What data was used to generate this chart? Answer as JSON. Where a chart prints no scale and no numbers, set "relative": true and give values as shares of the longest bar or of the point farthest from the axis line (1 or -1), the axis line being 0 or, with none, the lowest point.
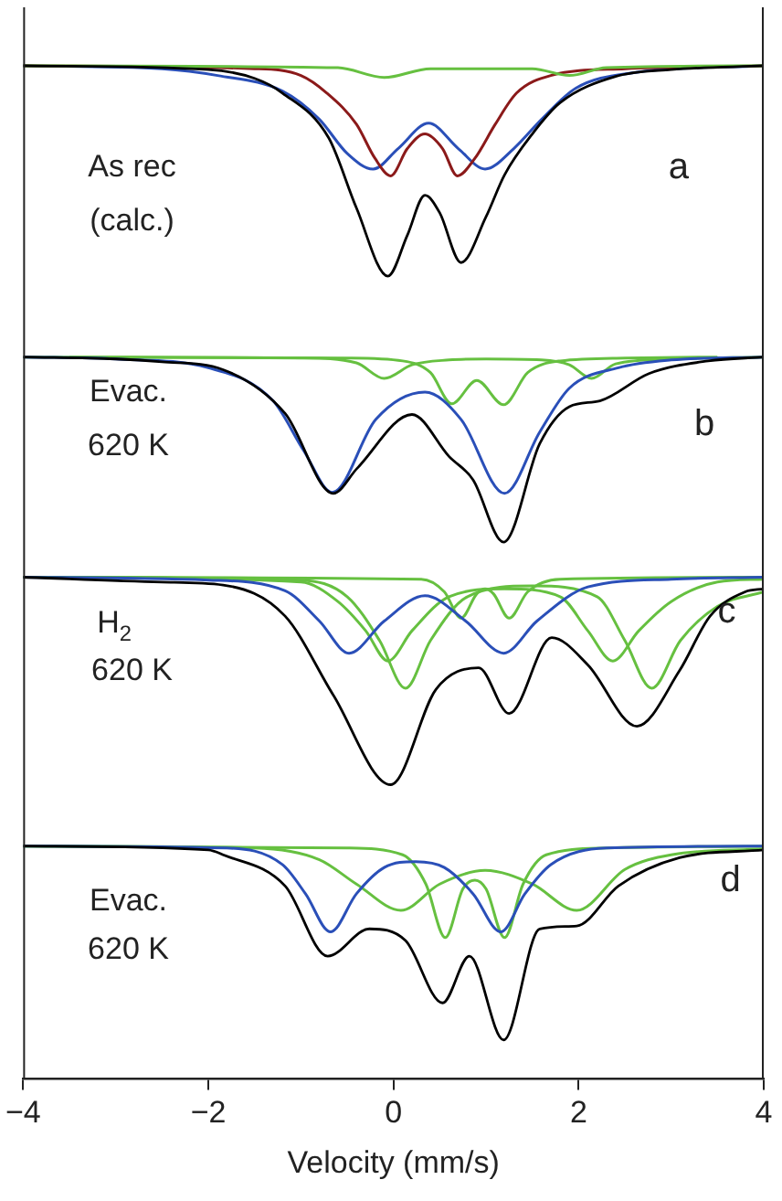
{
  "chart_data": {
    "type": "line",
    "relative": true,
    "xlabel": "Velocity (mm/s)",
    "xlim": [
      -4,
      4
    ],
    "xticks": [
      -4,
      -2,
      0,
      2,
      4
    ],
    "grid": false,
    "legend": false,
    "marker": "none",
    "line_style": "solid",
    "series": [
      {
        "color": "#000000",
        "x": [
          -4,
          -2,
          -1.5,
          -1.2,
          -0.7,
          -0.4,
          -0.06,
          0.15,
          0.34,
          0.5,
          0.73,
          1.0,
          1.2,
          1.5,
          1.8,
          2.4,
          3,
          4
        ],
        "values": [
          1.0,
          0.996,
          0.987,
          0.972,
          0.926,
          0.854,
          0.784,
          0.826,
          0.867,
          0.849,
          0.798,
          0.845,
          0.888,
          0.93,
          0.962,
          0.989,
          0.996,
          1.0
        ]
      },
      {
        "color": "#66c040",
        "x": [
          -4,
          -0.6,
          -0.1,
          0.4,
          1.5,
          1.9,
          2.3,
          4
        ],
        "values": [
          1.0,
          0.998,
          0.988,
          0.997,
          0.997,
          0.99,
          0.998,
          1.0
        ]
      },
      {
        "color": "#8b1a1a",
        "x": [
          -4,
          -1.5,
          -1.0,
          -0.72,
          -0.4,
          -0.2,
          -0.03,
          0.15,
          0.34,
          0.53,
          0.69,
          0.88,
          1.1,
          1.33,
          1.7,
          2.5,
          4
        ],
        "values": [
          1.0,
          0.997,
          0.99,
          0.972,
          0.94,
          0.905,
          0.887,
          0.915,
          0.93,
          0.915,
          0.887,
          0.905,
          0.94,
          0.972,
          0.99,
          0.997,
          1.0
        ]
      },
      {
        "color": "#2a4fb8",
        "x": [
          -4,
          -2.5,
          -1.9,
          -1.2,
          -0.8,
          -0.5,
          -0.22,
          0.05,
          0.38,
          0.7,
          0.99,
          1.3,
          1.6,
          1.97,
          2.6,
          4
        ],
        "values": [
          1.0,
          0.997,
          0.99,
          0.974,
          0.945,
          0.91,
          0.894,
          0.915,
          0.941,
          0.915,
          0.894,
          0.915,
          0.945,
          0.977,
          0.993,
          1.0
        ]
      },
      {
        "color": "#000000",
        "x": [
          -4,
          -3,
          -2.5,
          -1.84,
          -1.17,
          -0.65,
          -0.39,
          0.2,
          0.6,
          0.86,
          1.19,
          1.58,
          1.9,
          2.23,
          2.76,
          3.4,
          4
        ],
        "values": [
          0.701,
          0.699,
          0.696,
          0.688,
          0.643,
          0.561,
          0.587,
          0.642,
          0.599,
          0.575,
          0.511,
          0.612,
          0.65,
          0.656,
          0.684,
          0.697,
          0.701
        ]
      },
      {
        "color": "#2a4fb8",
        "x": [
          -4,
          -3,
          -2,
          -1.3,
          -0.97,
          -0.66,
          -0.19,
          0.34,
          0.73,
          1.2,
          1.58,
          1.9,
          2.43,
          3,
          4
        ],
        "values": [
          0.701,
          0.699,
          0.69,
          0.656,
          0.605,
          0.562,
          0.637,
          0.665,
          0.637,
          0.561,
          0.624,
          0.669,
          0.69,
          0.698,
          0.701
        ]
      },
      {
        "color": "#66c040",
        "x": [
          -4,
          -1,
          -0.4,
          -0.1,
          0.2,
          0.6,
          1.0,
          1.6,
          1.9,
          2.14,
          2.4,
          3,
          4
        ],
        "values": [
          0.701,
          0.7,
          0.695,
          0.679,
          0.693,
          0.698,
          0.699,
          0.698,
          0.693,
          0.679,
          0.694,
          0.699,
          0.701
        ]
      },
      {
        "color": "#66c040",
        "x": [
          -3.5,
          -0.5,
          0.1,
          0.4,
          0.63,
          0.9,
          1.19,
          1.45,
          1.8,
          2.5,
          3.5
        ],
        "values": [
          0.701,
          0.7,
          0.697,
          0.685,
          0.653,
          0.677,
          0.652,
          0.685,
          0.697,
          0.7,
          0.701
        ]
      },
      {
        "color": "#000000",
        "x": [
          -4,
          -2.5,
          -1.84,
          -1.17,
          -0.65,
          -0.03,
          0.46,
          0.92,
          1.25,
          1.71,
          2.1,
          2.63,
          3.09,
          3.42,
          3.8,
          4
        ],
        "values": [
          0.475,
          0.47,
          0.467,
          0.435,
          0.354,
          0.262,
          0.36,
          0.382,
          0.335,
          0.413,
          0.385,
          0.322,
          0.379,
          0.435,
          0.46,
          0.463
        ]
      },
      {
        "color": "#2a4fb8",
        "x": [
          -4,
          -2,
          -1.17,
          -0.8,
          -0.48,
          -0.1,
          0.34,
          0.78,
          1.19,
          1.55,
          2.1,
          3,
          4
        ],
        "values": [
          0.475,
          0.472,
          0.461,
          0.43,
          0.397,
          0.43,
          0.456,
          0.43,
          0.397,
          0.43,
          0.465,
          0.473,
          0.475
        ]
      },
      {
        "color": "#66c040",
        "x": [
          -4,
          -1,
          -0.6,
          -0.3,
          -0.06,
          0.2,
          0.6,
          1.2,
          1.8,
          2.1,
          2.37,
          2.65,
          3,
          3.5,
          4
        ],
        "values": [
          0.475,
          0.47,
          0.45,
          0.42,
          0.389,
          0.42,
          0.455,
          0.463,
          0.455,
          0.42,
          0.389,
          0.42,
          0.45,
          0.47,
          0.473
        ]
      },
      {
        "color": "#66c040",
        "x": [
          -4,
          -1,
          -0.5,
          -0.15,
          0.13,
          0.4,
          0.8,
          1.5,
          2.2,
          2.5,
          2.79,
          3.1,
          3.5,
          4
        ],
        "values": [
          0.475,
          0.472,
          0.455,
          0.41,
          0.361,
          0.41,
          0.455,
          0.466,
          0.455,
          0.41,
          0.361,
          0.41,
          0.445,
          0.46
        ]
      },
      {
        "color": "#66c040",
        "x": [
          -4,
          0.3,
          0.55,
          0.73,
          0.9,
          0.99,
          1.08,
          1.25,
          1.45,
          1.8,
          4
        ],
        "values": [
          0.475,
          0.473,
          0.46,
          0.433,
          0.458,
          0.463,
          0.458,
          0.433,
          0.46,
          0.473,
          0.475
        ]
      },
      {
        "color": "#000000",
        "x": [
          -4,
          -2,
          -1.84,
          -1.17,
          -0.71,
          -0.26,
          0.13,
          0.53,
          0.82,
          1.19,
          1.58,
          1.98,
          2.43,
          3.09,
          4
        ],
        "values": [
          0.199,
          0.195,
          0.19,
          0.158,
          0.086,
          0.114,
          0.102,
          0.038,
          0.086,
          0.0,
          0.114,
          0.117,
          0.158,
          0.187,
          0.195
        ]
      },
      {
        "color": "#2a4fb8",
        "x": [
          -4,
          -1.8,
          -1.2,
          -0.95,
          -0.68,
          -0.4,
          -0.1,
          0.24,
          0.55,
          0.86,
          1.16,
          1.42,
          1.7,
          2.3,
          4
        ],
        "values": [
          0.199,
          0.197,
          0.18,
          0.15,
          0.111,
          0.15,
          0.177,
          0.183,
          0.177,
          0.15,
          0.111,
          0.15,
          0.18,
          0.197,
          0.199
        ]
      },
      {
        "color": "#66c040",
        "x": [
          -4,
          -1.5,
          -0.8,
          -0.4,
          0.08,
          0.5,
          0.99,
          1.5,
          1.98,
          2.5,
          3,
          4
        ],
        "values": [
          0.199,
          0.197,
          0.185,
          0.16,
          0.133,
          0.16,
          0.174,
          0.16,
          0.133,
          0.175,
          0.19,
          0.196
        ]
      },
      {
        "color": "#66c040",
        "x": [
          -4,
          -0.5,
          0.1,
          0.35,
          0.56,
          0.75,
          0.88,
          1.0,
          1.2,
          1.4,
          1.65,
          2.3,
          4
        ],
        "values": [
          0.199,
          0.197,
          0.19,
          0.16,
          0.105,
          0.155,
          0.164,
          0.155,
          0.105,
          0.16,
          0.19,
          0.197,
          0.199
        ]
      }
    ],
    "annotations": [
      "As rec",
      "(calc.)",
      "a",
      "Evac.",
      "620 K",
      "b",
      "H$_{2}$",
      "620 K",
      "c",
      "Evac.",
      "620 K",
      "d"
    ]
  }
}
